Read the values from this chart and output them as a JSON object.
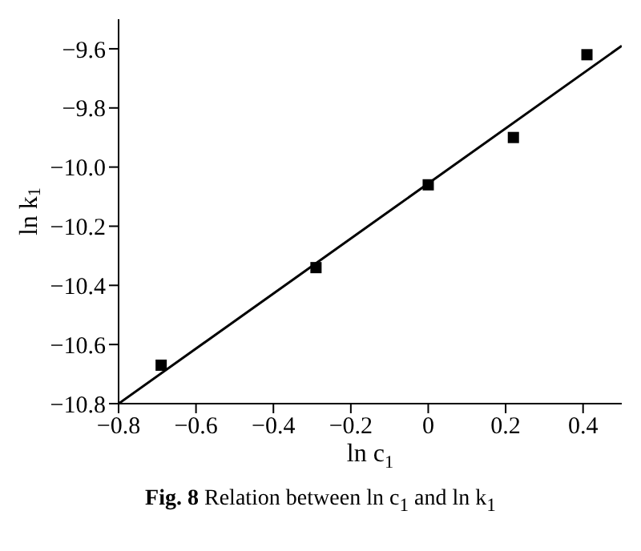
{
  "chart_data": {
    "type": "scatter",
    "title": "Fig. 8    Relation between  ln c$_{1}$  and ln k$_{1}$",
    "xlabel": "ln c$_{1}$",
    "ylabel": "ln k$_{1}$",
    "xlim": [
      -0.8,
      0.5
    ],
    "xticks": [
      -0.8,
      -0.6,
      -0.4,
      -0.2,
      0,
      0.2,
      0.4
    ],
    "ylim": [
      -10.8,
      -9.5
    ],
    "yticks": [
      -10.8,
      -10.6,
      -10.4,
      -10.2,
      {
        "value": -10,
        "label": "−10.0"
      },
      -9.8,
      -9.6
    ],
    "grid": false,
    "legend": false,
    "series": [
      {
        "color": "#000000",
        "marker": "square",
        "x": [
          -0.69,
          -0.29,
          0,
          0.22,
          0.41
        ],
        "values": [
          -10.67,
          -10.34,
          -10.06,
          -9.9,
          -9.62
        ]
      },
      {
        "type": "line",
        "color": "#000000",
        "marker": "none",
        "line_style": "solid",
        "x": [
          -0.8,
          0.5
        ],
        "values": [
          -10.8,
          -9.59
        ]
      }
    ]
  }
}
